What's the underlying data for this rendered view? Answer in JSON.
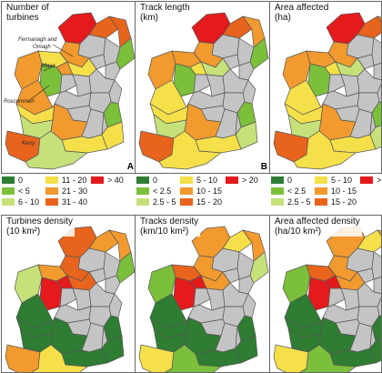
{
  "colors": {
    "c0": "#2e7d32",
    "c1": "#7cbf3a",
    "c2": "#c6e07a",
    "c3": "#f5e04a",
    "c4": "#f29a2e",
    "c5": "#e8641c",
    "c6": "#e41a1c",
    "c_grey": "#c4c4c4",
    "border": "#555555"
  },
  "panels": [
    {
      "id": "A",
      "title": "Number of\nturbines",
      "letter": "A",
      "annotations": [
        "Fermanagh and",
        "Omagh",
        "Mayo",
        "Roscommon",
        "Kerry"
      ]
    },
    {
      "id": "B",
      "title": "Track length\n(km)",
      "letter": "B"
    },
    {
      "id": "C",
      "title": "Area affected\n(ha)",
      "letter": ""
    },
    {
      "id": "D",
      "title": "Turbines density\n(10 km²)",
      "letter": ""
    },
    {
      "id": "E",
      "title": "Tracks density\n(km/10 km²)",
      "letter": ""
    },
    {
      "id": "F",
      "title": "Area affected density\n(ha/10 km²)",
      "letter": ""
    }
  ],
  "legends": [
    {
      "items": [
        [
          "0",
          "c0"
        ],
        [
          "< 5",
          "c1"
        ],
        [
          "6 - 10",
          "c2"
        ],
        [
          "11 - 20",
          "c3"
        ],
        [
          "21 - 30",
          "c4"
        ],
        [
          "31 - 40",
          "c5"
        ],
        [
          "> 40",
          "c6"
        ]
      ]
    },
    {
      "items": [
        [
          "0",
          "c0"
        ],
        [
          "< 2.5",
          "c1"
        ],
        [
          "2.5 - 5",
          "c2"
        ],
        [
          "5 - 10",
          "c3"
        ],
        [
          "10 - 15",
          "c4"
        ],
        [
          "15 - 20",
          "c5"
        ],
        [
          "> 20",
          "c6"
        ]
      ]
    },
    {
      "items": [
        [
          "0",
          "c0"
        ],
        [
          "< 2.5",
          "c1"
        ],
        [
          "2.5 - 5",
          "c2"
        ],
        [
          "5 - 10",
          "c3"
        ],
        [
          "10 - 15",
          "c4"
        ],
        [
          "15 - 20",
          "c5"
        ],
        [
          ">",
          "c6"
        ]
      ]
    }
  ]
}
